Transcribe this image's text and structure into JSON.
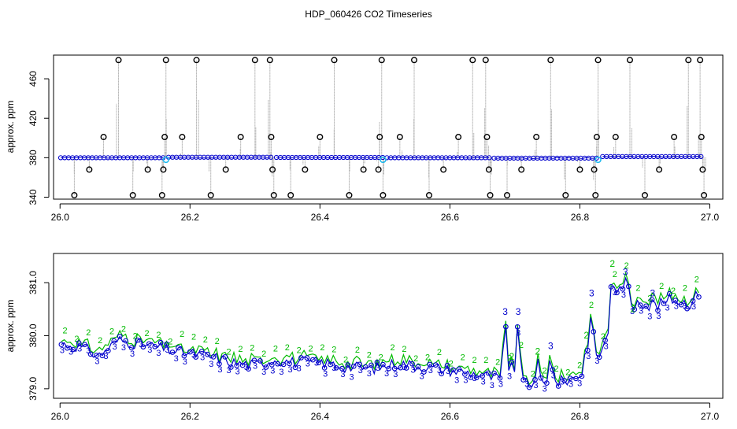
{
  "title": "HDP_060426  CO2 Timeseries",
  "colors": {
    "frame": "#000000",
    "raw_points": "#000000",
    "raw_lines": "#8c8c8c",
    "series_blue": "#0000cc",
    "series_green": "#00bb00",
    "cyan": "#22bbee"
  },
  "chart_data": [
    {
      "type": "scatter",
      "title": "",
      "xlabel": "",
      "ylabel": "approx. ppm",
      "xlim": [
        25.99,
        27.02
      ],
      "ylim": [
        338,
        484
      ],
      "xticks": [
        26.0,
        26.2,
        26.4,
        26.6,
        26.8,
        27.0
      ],
      "xtick_labels": [
        "26.0",
        "26.2",
        "26.4",
        "26.6",
        "26.8",
        "27.0"
      ],
      "yticks": [
        340,
        380,
        420,
        460
      ],
      "ytick_labels": [
        "340",
        "380",
        "420",
        "460"
      ],
      "grid": false,
      "baseline_blocks": [
        {
          "x": [
            26.001,
            26.163
          ],
          "y": 380.0
        },
        {
          "x": [
            26.167,
            26.327
          ],
          "y": 380.5
        },
        {
          "x": [
            26.333,
            26.497
          ],
          "y": 380.3
        },
        {
          "x": [
            26.503,
            26.662
          ],
          "y": 380.0
        },
        {
          "x": [
            26.668,
            26.828
          ],
          "y": 379.6
        },
        {
          "x": [
            26.835,
            26.988
          ],
          "y": 381.2
        }
      ],
      "cyan_points": [
        {
          "x": 26.163,
          "y": 378
        },
        {
          "x": 26.497,
          "y": 378
        },
        {
          "x": 26.828,
          "y": 378
        }
      ],
      "outliers": [
        {
          "x": 26.022,
          "y": 342
        },
        {
          "x": 26.045,
          "y": 368
        },
        {
          "x": 26.067,
          "y": 401
        },
        {
          "x": 26.09,
          "y": 479
        },
        {
          "x": 26.112,
          "y": 342
        },
        {
          "x": 26.135,
          "y": 368
        },
        {
          "x": 26.157,
          "y": 342
        },
        {
          "x": 26.159,
          "y": 368
        },
        {
          "x": 26.161,
          "y": 401
        },
        {
          "x": 26.163,
          "y": 479
        },
        {
          "x": 26.188,
          "y": 401
        },
        {
          "x": 26.21,
          "y": 479
        },
        {
          "x": 26.232,
          "y": 342
        },
        {
          "x": 26.255,
          "y": 368
        },
        {
          "x": 26.278,
          "y": 401
        },
        {
          "x": 26.3,
          "y": 479
        },
        {
          "x": 26.323,
          "y": 479
        },
        {
          "x": 26.325,
          "y": 401
        },
        {
          "x": 26.327,
          "y": 368
        },
        {
          "x": 26.329,
          "y": 342
        },
        {
          "x": 26.355,
          "y": 342
        },
        {
          "x": 26.377,
          "y": 368
        },
        {
          "x": 26.4,
          "y": 401
        },
        {
          "x": 26.422,
          "y": 479
        },
        {
          "x": 26.445,
          "y": 342
        },
        {
          "x": 26.467,
          "y": 368
        },
        {
          "x": 26.49,
          "y": 368
        },
        {
          "x": 26.492,
          "y": 401
        },
        {
          "x": 26.495,
          "y": 479
        },
        {
          "x": 26.497,
          "y": 342
        },
        {
          "x": 26.523,
          "y": 401
        },
        {
          "x": 26.545,
          "y": 479
        },
        {
          "x": 26.568,
          "y": 342
        },
        {
          "x": 26.59,
          "y": 368
        },
        {
          "x": 26.613,
          "y": 401
        },
        {
          "x": 26.635,
          "y": 479
        },
        {
          "x": 26.655,
          "y": 479
        },
        {
          "x": 26.657,
          "y": 401
        },
        {
          "x": 26.66,
          "y": 368
        },
        {
          "x": 26.662,
          "y": 342
        },
        {
          "x": 26.688,
          "y": 342
        },
        {
          "x": 26.71,
          "y": 368
        },
        {
          "x": 26.733,
          "y": 401
        },
        {
          "x": 26.755,
          "y": 479
        },
        {
          "x": 26.778,
          "y": 342
        },
        {
          "x": 26.8,
          "y": 368
        },
        {
          "x": 26.822,
          "y": 368
        },
        {
          "x": 26.824,
          "y": 342
        },
        {
          "x": 26.826,
          "y": 401
        },
        {
          "x": 26.828,
          "y": 479
        },
        {
          "x": 26.855,
          "y": 401
        },
        {
          "x": 26.877,
          "y": 479
        },
        {
          "x": 26.9,
          "y": 342
        },
        {
          "x": 26.922,
          "y": 368
        },
        {
          "x": 26.945,
          "y": 401
        },
        {
          "x": 26.967,
          "y": 479
        },
        {
          "x": 26.985,
          "y": 479
        },
        {
          "x": 26.987,
          "y": 401
        },
        {
          "x": 26.989,
          "y": 368
        },
        {
          "x": 26.991,
          "y": 342
        }
      ]
    },
    {
      "type": "line",
      "title": "",
      "xlabel": "",
      "ylabel": "approx. ppm",
      "xlim": [
        25.99,
        27.02
      ],
      "ylim": [
        378.82,
        381.55
      ],
      "xticks": [
        26.0,
        26.2,
        26.4,
        26.6,
        26.8,
        27.0
      ],
      "xtick_labels": [
        "26.0",
        "26.2",
        "26.4",
        "26.6",
        "26.8",
        "27.0"
      ],
      "yticks": [
        379.0,
        380.0,
        381.0
      ],
      "ytick_labels": [
        "379.0",
        "380.0",
        "381.0"
      ],
      "grid": false,
      "point_labels": [
        "2",
        "3"
      ],
      "trend": {
        "x": [
          26.0,
          26.03,
          26.06,
          26.09,
          26.12,
          26.15,
          26.18,
          26.21,
          26.24,
          26.27,
          26.3,
          26.33,
          26.36,
          26.4,
          26.44,
          26.48,
          26.52,
          26.56,
          26.6,
          26.64,
          26.67,
          26.7,
          26.73,
          26.76,
          26.79,
          26.82,
          26.84,
          26.86,
          26.88,
          26.91,
          26.94,
          26.97,
          26.985
        ],
        "y": [
          379.85,
          379.8,
          379.62,
          379.92,
          379.85,
          379.78,
          379.7,
          379.65,
          379.58,
          379.48,
          379.45,
          379.55,
          379.5,
          379.5,
          379.42,
          379.38,
          379.48,
          379.42,
          379.35,
          379.28,
          379.2,
          379.15,
          379.05,
          379.1,
          379.2,
          379.4,
          379.9,
          380.9,
          380.8,
          380.5,
          380.7,
          380.6,
          380.85
        ]
      },
      "spikes": [
        {
          "x": 26.685,
          "y": 380.35
        },
        {
          "x": 26.695,
          "y": 379.5
        },
        {
          "x": 26.705,
          "y": 380.35
        },
        {
          "x": 26.735,
          "y": 379.6
        },
        {
          "x": 26.755,
          "y": 379.7
        },
        {
          "x": 26.81,
          "y": 379.9
        },
        {
          "x": 26.818,
          "y": 380.7
        },
        {
          "x": 26.85,
          "y": 381.25
        },
        {
          "x": 26.87,
          "y": 381.1
        },
        {
          "x": 26.882,
          "y": 380.4
        },
        {
          "x": 26.912,
          "y": 380.7
        }
      ]
    }
  ]
}
